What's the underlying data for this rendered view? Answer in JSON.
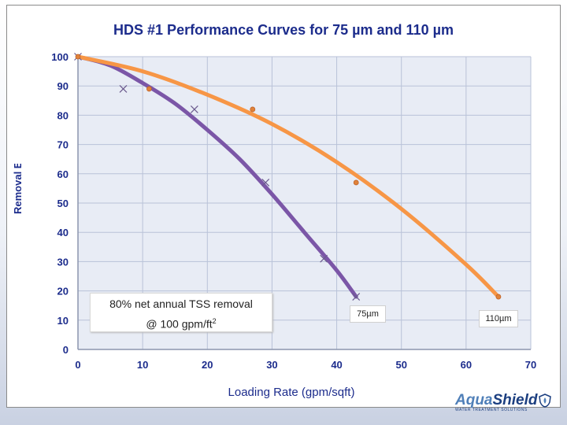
{
  "chart_data": {
    "type": "line",
    "title": "HDS #1 Performance Curves for 75 µm and 110 µm",
    "xlabel": "Loading Rate (gpm/sqft)",
    "ylabel": "Removal Efficiency",
    "xlim": [
      0,
      70
    ],
    "ylim": [
      0,
      100
    ],
    "xticks": [
      0,
      10,
      20,
      30,
      40,
      50,
      60,
      70
    ],
    "yticks": [
      0,
      10,
      20,
      30,
      40,
      50,
      60,
      70,
      80,
      90,
      100
    ],
    "grid": true,
    "series": [
      {
        "name": "75µm",
        "color": "#7b56a7",
        "points": [
          {
            "x": 0,
            "y": 100
          },
          {
            "x": 7,
            "y": 89
          },
          {
            "x": 18,
            "y": 82
          },
          {
            "x": 29,
            "y": 57
          },
          {
            "x": 38,
            "y": 31
          },
          {
            "x": 43,
            "y": 18
          }
        ],
        "curve": [
          {
            "x": 0,
            "y": 100
          },
          {
            "x": 5,
            "y": 97
          },
          {
            "x": 10,
            "y": 91
          },
          {
            "x": 15,
            "y": 84
          },
          {
            "x": 20,
            "y": 75
          },
          {
            "x": 25,
            "y": 65
          },
          {
            "x": 30,
            "y": 53
          },
          {
            "x": 35,
            "y": 40
          },
          {
            "x": 40,
            "y": 27
          },
          {
            "x": 43,
            "y": 18
          }
        ]
      },
      {
        "name": "110µm",
        "color": "#f79646",
        "points": [
          {
            "x": 0,
            "y": 100
          },
          {
            "x": 11,
            "y": 89
          },
          {
            "x": 27,
            "y": 82
          },
          {
            "x": 43,
            "y": 57
          },
          {
            "x": 65,
            "y": 18
          }
        ],
        "curve": [
          {
            "x": 0,
            "y": 100
          },
          {
            "x": 10,
            "y": 95
          },
          {
            "x": 20,
            "y": 87
          },
          {
            "x": 30,
            "y": 77
          },
          {
            "x": 40,
            "y": 64
          },
          {
            "x": 50,
            "y": 48
          },
          {
            "x": 60,
            "y": 29
          },
          {
            "x": 65,
            "y": 18
          }
        ]
      }
    ],
    "annotations": [
      "80% net annual TSS removal",
      "@ 100 gpm/ft"
    ]
  },
  "annotation": {
    "line1": "80% net annual TSS removal",
    "line2": "@ 100 gpm/ft",
    "superscript": "2"
  },
  "labels": {
    "series_75": "75µm",
    "series_110": "110µm"
  },
  "logo": {
    "aqua": "Aqua",
    "shield": "Shield",
    "tagline": "WATER TREATMENT SOLUTIONS",
    "accent_color": "#4f7fb8"
  }
}
